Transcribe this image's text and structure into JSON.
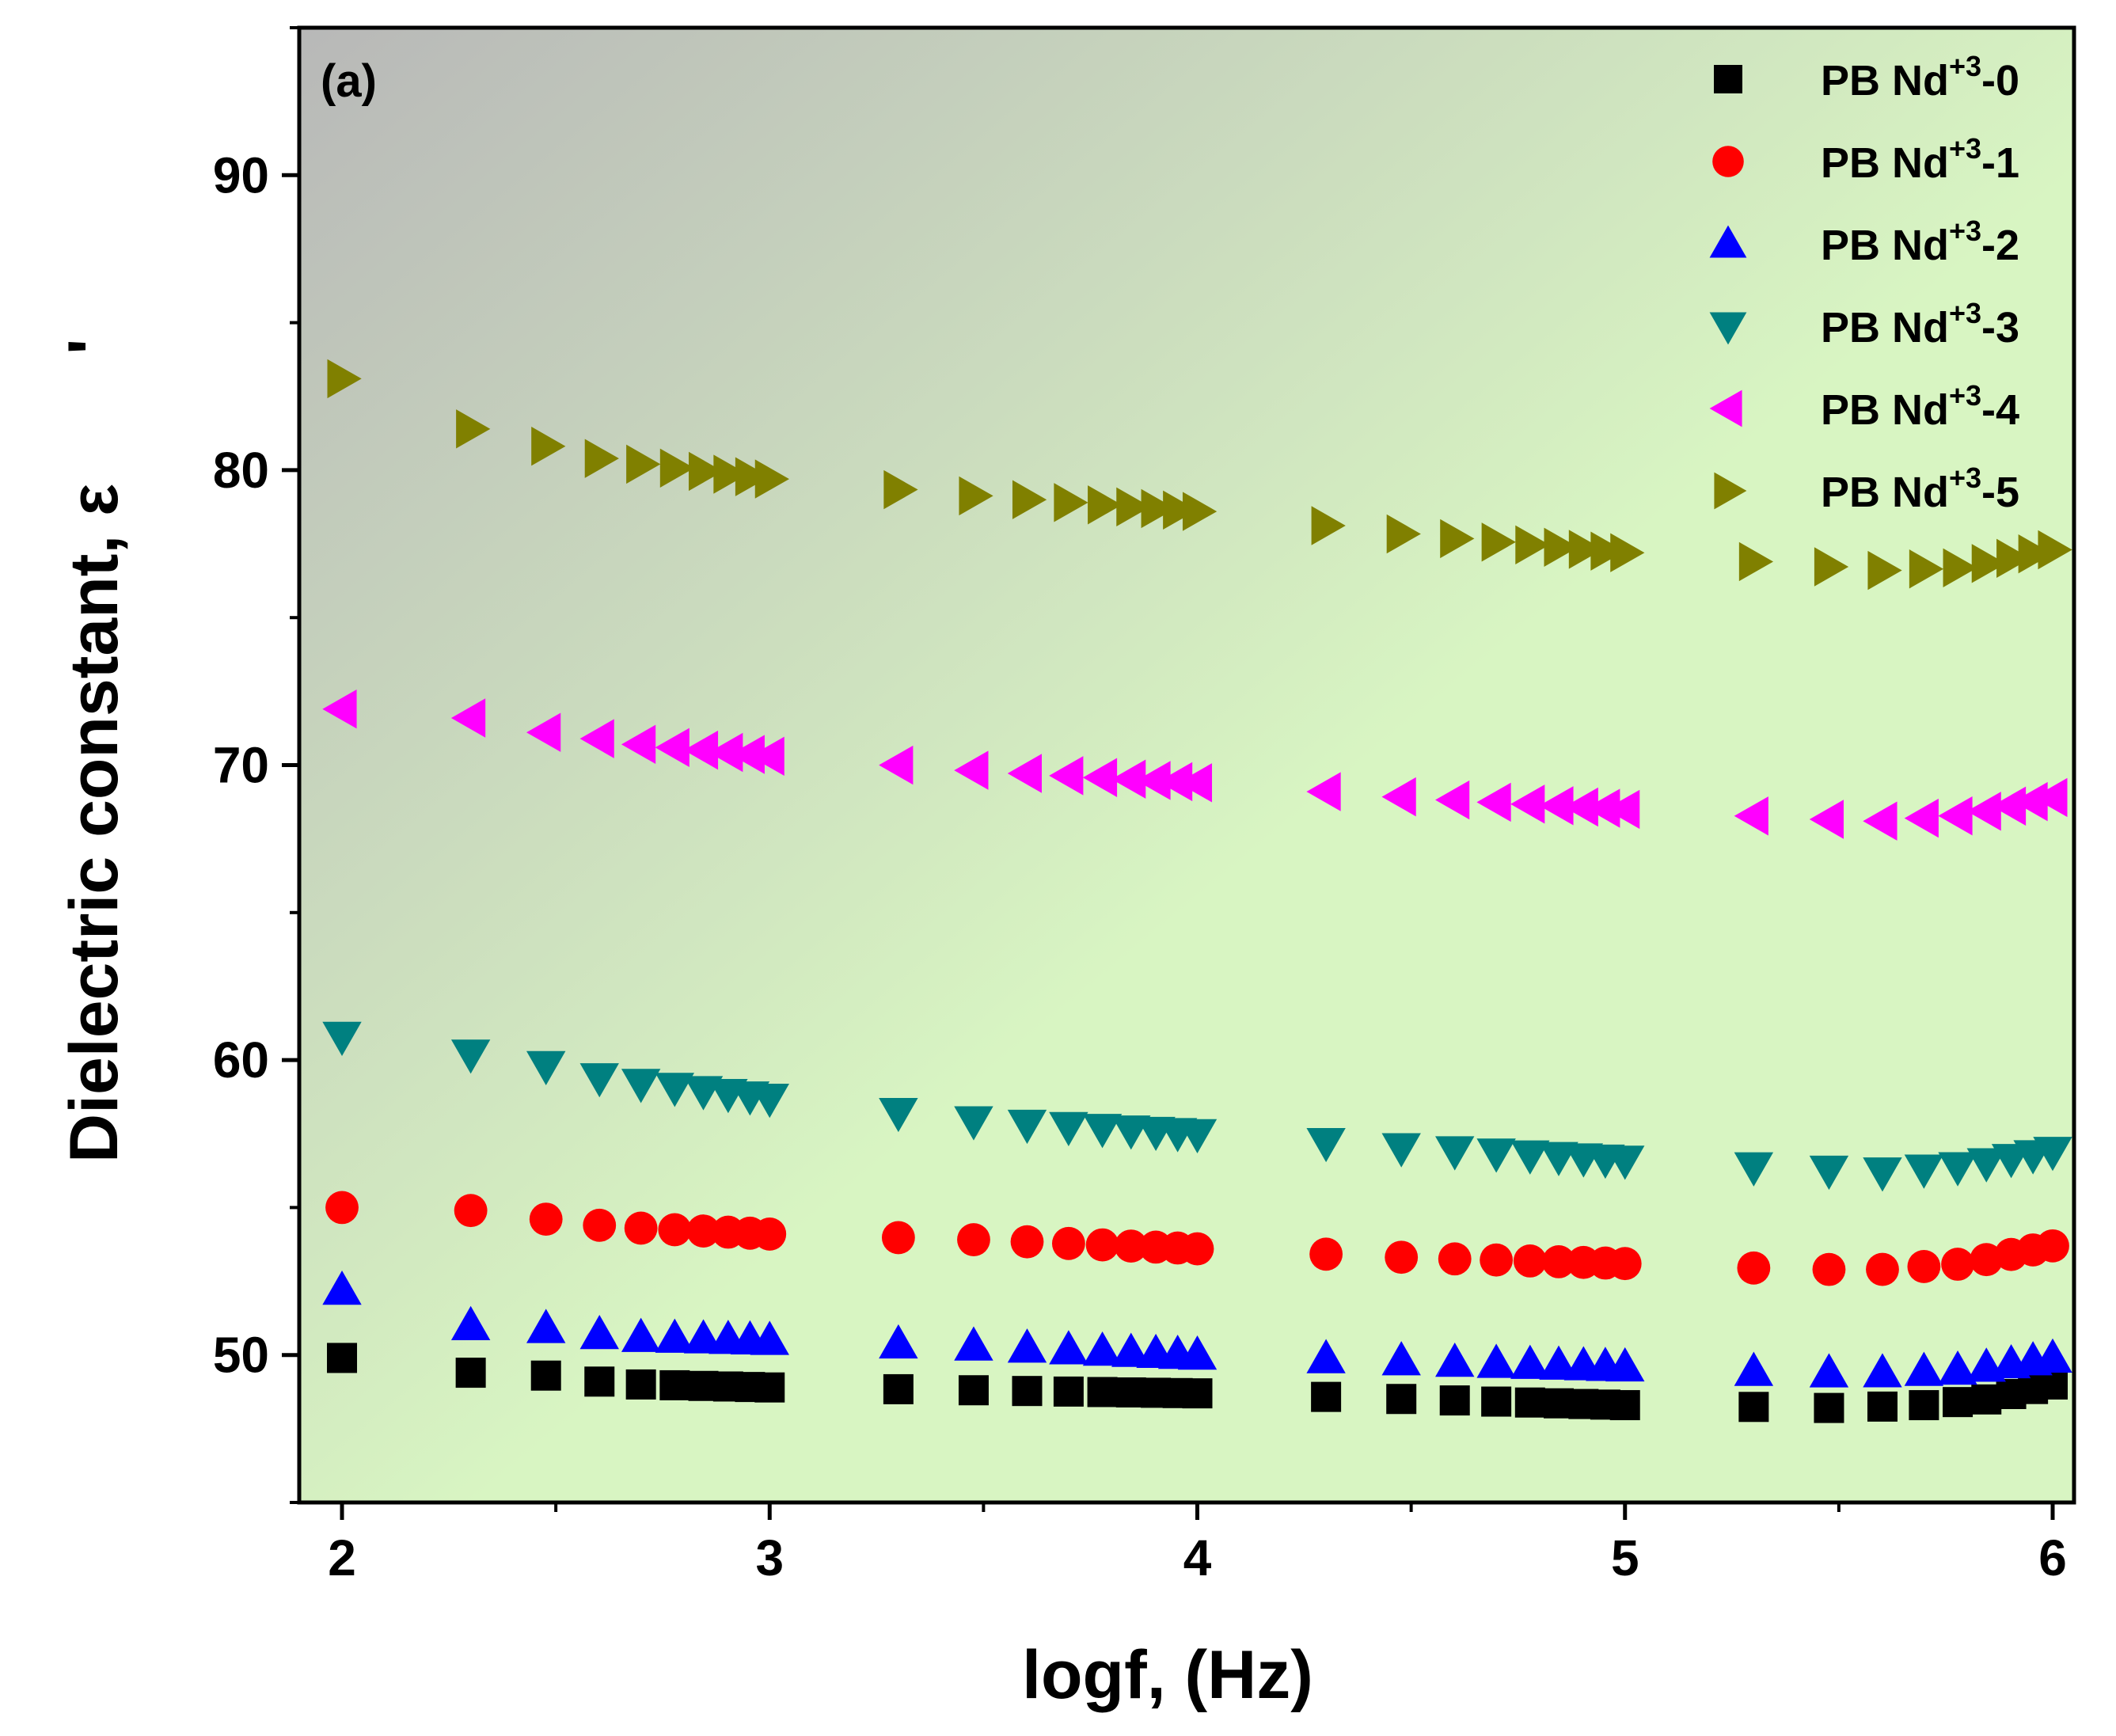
{
  "chart_data": {
    "type": "scatter",
    "panel_label": "(a)",
    "xlabel": "logf, (Hz)",
    "ylabel": "Dielectric constant, ε",
    "ylabel_prime": "'",
    "xlim": [
      1.9,
      6.05
    ],
    "ylim": [
      45,
      95
    ],
    "xticks": [
      2,
      3,
      4,
      5,
      6
    ],
    "yticks": [
      50,
      60,
      70,
      80,
      90
    ],
    "legend_position": "top-right",
    "background": {
      "left_color": "#b8b8b8",
      "right_color": "#d8f5c2"
    },
    "series": [
      {
        "name_prefix": "PB Nd",
        "name_sup": "+3",
        "name_suffix": "-0",
        "marker": "square",
        "color": "#000000",
        "points": [
          [
            2.0,
            49.9
          ],
          [
            2.3,
            49.4
          ],
          [
            2.48,
            49.3
          ],
          [
            2.6,
            49.1
          ],
          [
            2.7,
            49.0
          ],
          [
            3.0,
            48.9
          ],
          [
            3.5,
            48.8
          ],
          [
            4.0,
            48.7
          ],
          [
            4.5,
            48.5
          ],
          [
            5.0,
            48.3
          ],
          [
            5.5,
            48.2
          ],
          [
            5.7,
            48.3
          ],
          [
            5.85,
            48.5
          ],
          [
            6.0,
            49.0
          ]
        ]
      },
      {
        "name_prefix": "PB Nd",
        "name_sup": "+3",
        "name_suffix": "-1",
        "marker": "circle",
        "color": "#ff0000",
        "points": [
          [
            2.0,
            55.0
          ],
          [
            2.3,
            54.9
          ],
          [
            2.48,
            54.6
          ],
          [
            2.6,
            54.4
          ],
          [
            2.7,
            54.3
          ],
          [
            3.0,
            54.1
          ],
          [
            3.5,
            53.9
          ],
          [
            4.0,
            53.6
          ],
          [
            4.5,
            53.3
          ],
          [
            5.0,
            53.1
          ],
          [
            5.4,
            52.9
          ],
          [
            5.6,
            52.9
          ],
          [
            5.8,
            53.1
          ],
          [
            6.0,
            53.7
          ]
        ]
      },
      {
        "name_prefix": "PB Nd",
        "name_sup": "+3",
        "name_suffix": "-2",
        "marker": "triangle-up",
        "color": "#0000ff",
        "points": [
          [
            2.0,
            52.2
          ],
          [
            2.3,
            51.0
          ],
          [
            2.48,
            50.9
          ],
          [
            2.6,
            50.7
          ],
          [
            2.7,
            50.6
          ],
          [
            3.0,
            50.5
          ],
          [
            3.5,
            50.3
          ],
          [
            4.0,
            50.0
          ],
          [
            4.5,
            49.8
          ],
          [
            5.0,
            49.6
          ],
          [
            5.4,
            49.4
          ],
          [
            5.6,
            49.4
          ],
          [
            5.8,
            49.5
          ],
          [
            6.0,
            49.9
          ]
        ]
      },
      {
        "name_prefix": "PB Nd",
        "name_sup": "+3",
        "name_suffix": "-3",
        "marker": "triangle-down",
        "color": "#008080",
        "points": [
          [
            2.0,
            60.8
          ],
          [
            2.3,
            60.2
          ],
          [
            2.48,
            59.8
          ],
          [
            2.6,
            59.4
          ],
          [
            2.7,
            59.2
          ],
          [
            3.0,
            58.7
          ],
          [
            3.5,
            57.9
          ],
          [
            4.0,
            57.5
          ],
          [
            4.5,
            57.0
          ],
          [
            5.0,
            56.6
          ],
          [
            5.4,
            56.3
          ],
          [
            5.6,
            56.2
          ],
          [
            5.8,
            56.4
          ],
          [
            6.0,
            56.9
          ]
        ]
      },
      {
        "name_prefix": "PB Nd",
        "name_sup": "+3",
        "name_suffix": "-4",
        "marker": "triangle-left",
        "color": "#ff00ff",
        "points": [
          [
            2.0,
            71.9
          ],
          [
            2.3,
            71.6
          ],
          [
            2.48,
            71.1
          ],
          [
            2.6,
            70.9
          ],
          [
            2.7,
            70.7
          ],
          [
            3.0,
            70.3
          ],
          [
            3.5,
            69.8
          ],
          [
            4.0,
            69.4
          ],
          [
            4.5,
            68.9
          ],
          [
            5.0,
            68.5
          ],
          [
            5.4,
            68.2
          ],
          [
            5.6,
            68.1
          ],
          [
            5.8,
            68.3
          ],
          [
            6.0,
            68.9
          ]
        ]
      },
      {
        "name_prefix": "PB Nd",
        "name_sup": "+3",
        "name_suffix": "-5",
        "marker": "triangle-right",
        "color": "#808000",
        "points": [
          [
            2.0,
            83.1
          ],
          [
            2.3,
            81.4
          ],
          [
            2.48,
            80.8
          ],
          [
            2.6,
            80.4
          ],
          [
            2.7,
            80.2
          ],
          [
            3.0,
            79.7
          ],
          [
            3.5,
            79.1
          ],
          [
            4.0,
            78.6
          ],
          [
            4.5,
            77.8
          ],
          [
            5.0,
            77.2
          ],
          [
            5.4,
            76.8
          ],
          [
            5.6,
            76.6
          ],
          [
            5.8,
            76.7
          ],
          [
            6.0,
            77.3
          ]
        ]
      }
    ]
  }
}
